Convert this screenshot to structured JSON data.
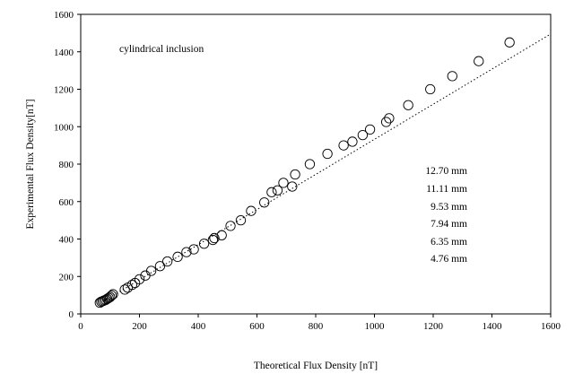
{
  "chart_data": {
    "type": "scatter",
    "title": "",
    "xlabel": "Theoretical Flux Density [nT]",
    "ylabel": "Experimental Flux Density[nT]",
    "xlim": [
      0,
      1600
    ],
    "ylim": [
      0,
      1600
    ],
    "xticks": [
      "0",
      "200",
      "400",
      "600",
      "800",
      "1000",
      "1200",
      "1400",
      "1600"
    ],
    "yticks": [
      "0",
      "200",
      "400",
      "600",
      "800",
      "1000",
      "1200",
      "1400",
      "1600"
    ],
    "grid": false,
    "annotation": "cylindrical inclusion",
    "legend_lines": [
      "12.70 mm",
      "11.11 mm",
      "9.53 mm",
      "7.94 mm",
      "6.35 mm",
      "4.76 mm"
    ],
    "trendline": {
      "style": "dotted",
      "x": [
        80,
        1600
      ],
      "y": [
        70,
        1495
      ]
    },
    "points": [
      {
        "x": 65,
        "y": 60
      },
      {
        "x": 70,
        "y": 65
      },
      {
        "x": 75,
        "y": 68
      },
      {
        "x": 80,
        "y": 72
      },
      {
        "x": 85,
        "y": 75
      },
      {
        "x": 90,
        "y": 80
      },
      {
        "x": 95,
        "y": 85
      },
      {
        "x": 100,
        "y": 90
      },
      {
        "x": 105,
        "y": 98
      },
      {
        "x": 110,
        "y": 105
      },
      {
        "x": 150,
        "y": 130
      },
      {
        "x": 160,
        "y": 140
      },
      {
        "x": 175,
        "y": 155
      },
      {
        "x": 185,
        "y": 165
      },
      {
        "x": 200,
        "y": 185
      },
      {
        "x": 220,
        "y": 205
      },
      {
        "x": 240,
        "y": 230
      },
      {
        "x": 270,
        "y": 255
      },
      {
        "x": 295,
        "y": 280
      },
      {
        "x": 330,
        "y": 305
      },
      {
        "x": 360,
        "y": 330
      },
      {
        "x": 385,
        "y": 345
      },
      {
        "x": 420,
        "y": 375
      },
      {
        "x": 450,
        "y": 395
      },
      {
        "x": 455,
        "y": 405
      },
      {
        "x": 480,
        "y": 420
      },
      {
        "x": 510,
        "y": 470
      },
      {
        "x": 545,
        "y": 500
      },
      {
        "x": 580,
        "y": 550
      },
      {
        "x": 625,
        "y": 595
      },
      {
        "x": 650,
        "y": 650
      },
      {
        "x": 670,
        "y": 660
      },
      {
        "x": 690,
        "y": 700
      },
      {
        "x": 720,
        "y": 680
      },
      {
        "x": 730,
        "y": 745
      },
      {
        "x": 780,
        "y": 800
      },
      {
        "x": 840,
        "y": 855
      },
      {
        "x": 895,
        "y": 900
      },
      {
        "x": 925,
        "y": 920
      },
      {
        "x": 960,
        "y": 955
      },
      {
        "x": 985,
        "y": 985
      },
      {
        "x": 1040,
        "y": 1025
      },
      {
        "x": 1050,
        "y": 1045
      },
      {
        "x": 1115,
        "y": 1115
      },
      {
        "x": 1190,
        "y": 1200
      },
      {
        "x": 1265,
        "y": 1270
      },
      {
        "x": 1355,
        "y": 1350
      },
      {
        "x": 1460,
        "y": 1450
      }
    ]
  }
}
